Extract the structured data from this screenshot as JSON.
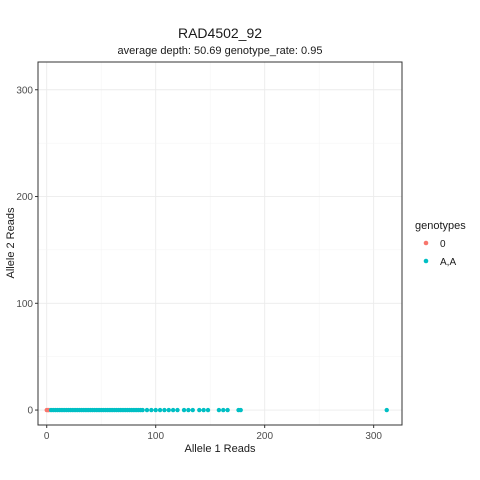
{
  "chart_data": {
    "type": "scatter",
    "title": "RAD4502_92",
    "subtitle": "average depth:  50.69  genotype_rate:  0.95",
    "xlabel": "Allele 1 Reads",
    "ylabel": "Allele 2 Reads",
    "xlim": [
      -8,
      326
    ],
    "ylim": [
      -14,
      326
    ],
    "xticks": [
      0,
      100,
      200,
      300
    ],
    "yticks": [
      0,
      100,
      200,
      300
    ],
    "grid": true,
    "legend": {
      "title": "genotypes",
      "placement": "right",
      "entries": [
        "0",
        "A,A"
      ]
    },
    "series": [
      {
        "name": "0",
        "color": "#F8766D",
        "x": [
          0,
          1,
          2
        ],
        "y": [
          0,
          0,
          0
        ]
      },
      {
        "name": "A,A",
        "color": "#00BFC4",
        "x": [
          4,
          6,
          8,
          10,
          12,
          14,
          16,
          18,
          20,
          22,
          24,
          26,
          28,
          30,
          32,
          34,
          36,
          38,
          40,
          42,
          44,
          46,
          48,
          50,
          52,
          54,
          56,
          58,
          60,
          62,
          64,
          66,
          68,
          70,
          72,
          74,
          76,
          78,
          80,
          82,
          84,
          86,
          88,
          92,
          96,
          100,
          104,
          108,
          112,
          116,
          120,
          126,
          130,
          134,
          140,
          144,
          148,
          158,
          162,
          166,
          176,
          178,
          312
        ],
        "y": [
          0,
          0,
          0,
          0,
          0,
          0,
          0,
          0,
          0,
          0,
          0,
          0,
          0,
          0,
          0,
          0,
          0,
          0,
          0,
          0,
          0,
          0,
          0,
          0,
          0,
          0,
          0,
          0,
          0,
          0,
          0,
          0,
          0,
          0,
          0,
          0,
          0,
          0,
          0,
          0,
          0,
          0,
          0,
          0,
          0,
          0,
          0,
          0,
          0,
          0,
          0,
          0,
          0,
          0,
          0,
          0,
          0,
          0,
          0,
          0,
          0,
          0,
          0
        ]
      }
    ]
  }
}
